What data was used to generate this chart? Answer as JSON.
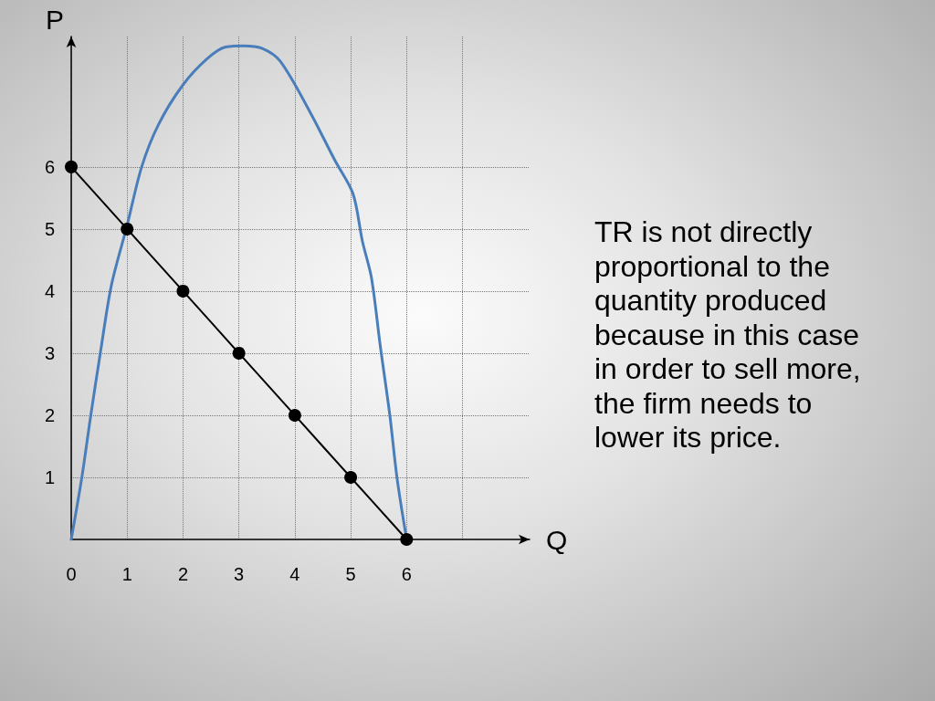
{
  "chart_data": {
    "type": "line",
    "xlabel": "Q",
    "ylabel": "P",
    "annotations": [
      "TR is not directly proportional to the quantity produced because in this case in order to sell more, the firm needs to lower its price."
    ],
    "xlim": [
      0,
      8.2
    ],
    "xticks": [
      0,
      1,
      2,
      3,
      4,
      5,
      6,
      {
        "value": 7,
        "label": null
      }
    ],
    "ylim": [
      0,
      8.1
    ],
    "yticks": [
      1,
      2,
      3,
      4,
      5,
      6
    ],
    "grid": true,
    "series": [
      {
        "color": "#4a7ebb",
        "marker": "none",
        "x": [
          0,
          0.19,
          0.35,
          0.52,
          0.72,
          1.0,
          1.26,
          1.56,
          1.99,
          2.43,
          2.76,
          3.08,
          3.41,
          3.74,
          4.28,
          4.72,
          5.04,
          5.21,
          5.37,
          5.53,
          5.7,
          5.83,
          6.0
        ],
        "values": [
          0,
          1.0,
          2.0,
          3.0,
          4.1,
          5.06,
          6.0,
          6.68,
          7.31,
          7.74,
          7.93,
          7.95,
          7.91,
          7.7,
          6.87,
          6.1,
          5.57,
          4.8,
          4.22,
          3.11,
          2.0,
          0.98,
          0
        ]
      },
      {
        "color": "#000000",
        "marker": "circle",
        "x": [
          0,
          1,
          2,
          3,
          4,
          5,
          6
        ],
        "values": [
          6,
          5,
          4,
          3,
          2,
          1,
          0
        ]
      }
    ]
  }
}
